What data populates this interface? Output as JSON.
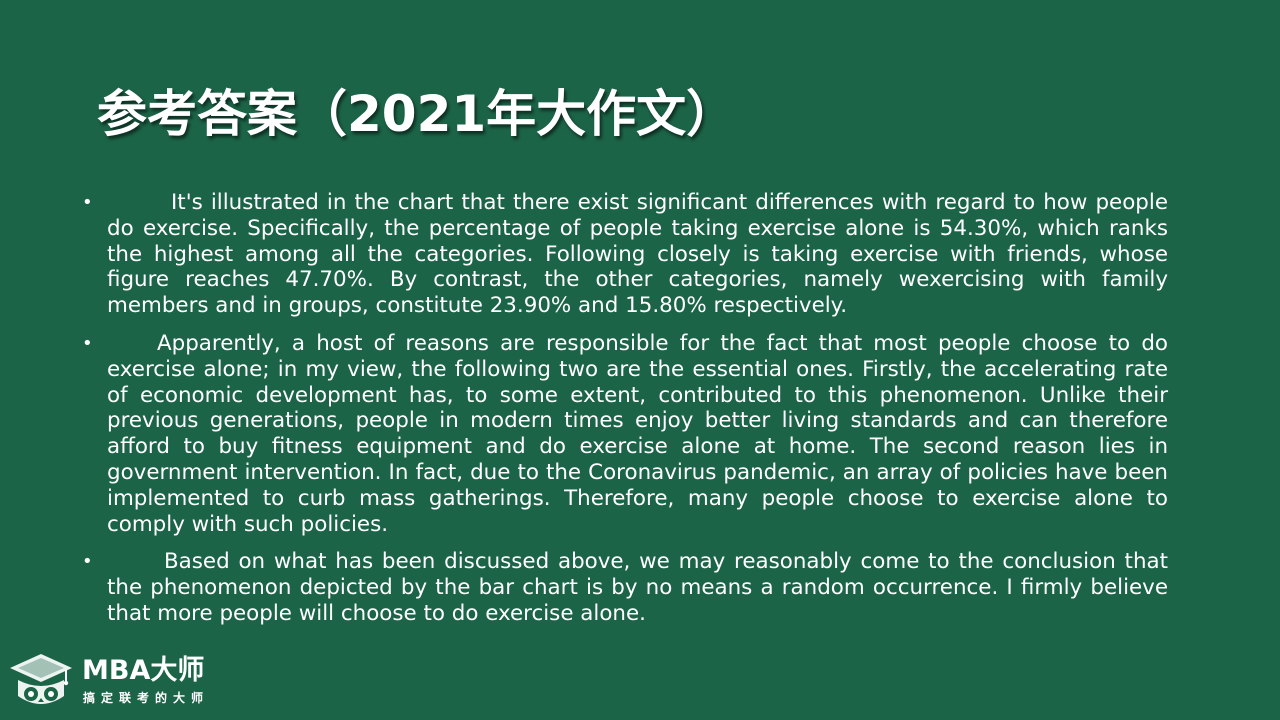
{
  "title": "参考答案（2021年大作文）",
  "paragraphs": [
    "It's illustrated in the chart that there exist significant differences with regard to how people do exercise. Specifically, the percentage of people taking exercise alone is 54.30%, which ranks the highest among all the categories. Following closely is taking exercise with friends, whose figure reaches 47.70%. By contrast, the other categories, namely wexercising with family members and in groups, constitute 23.90% and 15.80% respectively.",
    "Apparently, a host of reasons are responsible for the fact that most people choose to do exercise alone; in my view, the following two are the essential ones. Firstly, the accelerating rate of economic development has, to some extent, contributed to this phenomenon. Unlike their previous generations, people in modern times enjoy better living standards and can therefore afford to buy fitness equipment and do exercise alone at home. The second reason lies in government intervention. In fact, due to the Coronavirus pandemic, an array of policies have been implemented to curb mass gatherings. Therefore, many people choose to exercise alone to comply with such policies.",
    "Based on what has been discussed above, we may reasonably come to the conclusion that the phenomenon depicted by the bar chart is by no means a random occurrence. I firmly believe that more people will choose to do exercise alone."
  ],
  "bullet_glyph": "•",
  "logo": {
    "name": "MBA大师",
    "tagline": "搞定联考的大师",
    "icon": "graduation-cap-owl-icon"
  },
  "colors": {
    "background": "#1c6448",
    "text": "#ffffff"
  }
}
